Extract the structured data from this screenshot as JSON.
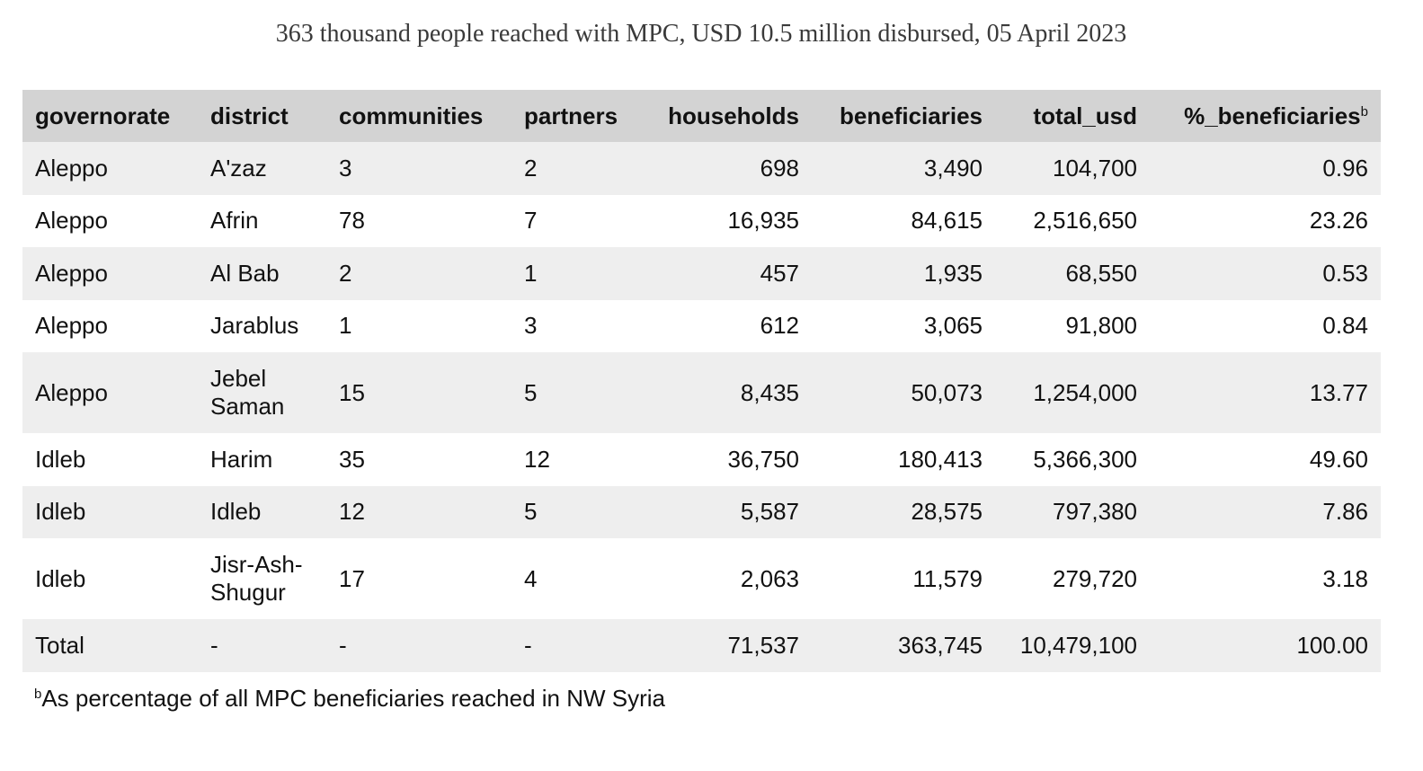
{
  "title": "363 thousand people reached with MPC, USD 10.5 million disbursed, 05 April 2023",
  "chart_data": {
    "type": "table",
    "columns": [
      "governorate",
      "district",
      "communities",
      "partners",
      "households",
      "beneficiaries",
      "total_usd",
      "%_beneficiaries"
    ],
    "column_align": [
      "left",
      "left",
      "left",
      "left",
      "right",
      "right",
      "right",
      "right"
    ],
    "header_footnote_marker": "b",
    "rows": [
      {
        "cells": [
          "Aleppo",
          "A'zaz",
          "3",
          "2",
          "698",
          "3,490",
          "104,700",
          "0.96"
        ]
      },
      {
        "cells": [
          "Aleppo",
          "Afrin",
          "78",
          "7",
          "16,935",
          "84,615",
          "2,516,650",
          "23.26"
        ]
      },
      {
        "cells": [
          "Aleppo",
          "Al Bab",
          "2",
          "1",
          "457",
          "1,935",
          "68,550",
          "0.53"
        ]
      },
      {
        "cells": [
          "Aleppo",
          "Jarablus",
          "1",
          "3",
          "612",
          "3,065",
          "91,800",
          "0.84"
        ]
      },
      {
        "cells": [
          "Aleppo",
          "Jebel Saman",
          "15",
          "5",
          "8,435",
          "50,073",
          "1,254,000",
          "13.77"
        ]
      },
      {
        "cells": [
          "Idleb",
          "Harim",
          "35",
          "12",
          "36,750",
          "180,413",
          "5,366,300",
          "49.60"
        ]
      },
      {
        "cells": [
          "Idleb",
          "Idleb",
          "12",
          "5",
          "5,587",
          "28,575",
          "797,380",
          "7.86"
        ]
      },
      {
        "cells": [
          "Idleb",
          "Jisr-Ash-Shugur",
          "17",
          "4",
          "2,063",
          "11,579",
          "279,720",
          "3.18"
        ]
      },
      {
        "cells": [
          "Total",
          "-",
          "-",
          "-",
          "71,537",
          "363,745",
          "10,479,100",
          "100.00"
        ]
      }
    ],
    "row_colors": [
      "#eeeeee",
      "#ffffff"
    ],
    "header_color": "#d3d3d3"
  },
  "footnote": {
    "marker": "b",
    "text": "As percentage of all MPC beneficiaries reached in NW Syria"
  }
}
